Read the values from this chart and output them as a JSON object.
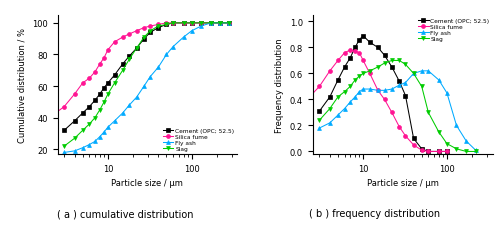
{
  "cum_x_cement": [
    3,
    4,
    5,
    6,
    7,
    8,
    9,
    10,
    12,
    15,
    18,
    22,
    27,
    32,
    40,
    50,
    60,
    80,
    100,
    130,
    170,
    220,
    280
  ],
  "cum_y_cement": [
    32,
    38,
    43,
    47,
    51,
    55,
    59,
    62,
    67,
    74,
    79,
    84,
    90,
    94,
    97,
    99,
    100,
    100,
    100,
    100,
    100,
    100,
    100
  ],
  "cum_x_silica": [
    2,
    3,
    4,
    5,
    6,
    7,
    8,
    9,
    10,
    12,
    15,
    18,
    22,
    27,
    32,
    40,
    50,
    60,
    80,
    100,
    130,
    170,
    220,
    280
  ],
  "cum_y_silica": [
    40,
    47,
    55,
    62,
    65,
    69,
    74,
    78,
    83,
    88,
    91,
    93,
    95,
    97,
    98,
    99,
    100,
    100,
    100,
    100,
    100,
    100,
    100,
    100
  ],
  "cum_x_flyash": [
    3,
    4,
    5,
    6,
    7,
    8,
    9,
    10,
    12,
    15,
    18,
    22,
    27,
    32,
    40,
    50,
    60,
    80,
    100,
    130,
    170,
    220,
    280
  ],
  "cum_y_flyash": [
    18,
    19,
    21,
    23,
    25,
    28,
    31,
    34,
    38,
    43,
    48,
    53,
    60,
    66,
    72,
    80,
    85,
    91,
    95,
    98,
    100,
    100,
    100
  ],
  "cum_x_slag": [
    3,
    4,
    5,
    6,
    7,
    8,
    9,
    10,
    12,
    15,
    18,
    22,
    27,
    32,
    40,
    50,
    60,
    80,
    100,
    130,
    170,
    220,
    280
  ],
  "cum_y_slag": [
    22,
    27,
    32,
    36,
    40,
    45,
    50,
    55,
    62,
    70,
    77,
    84,
    91,
    95,
    98,
    99,
    100,
    100,
    100,
    100,
    100,
    100,
    100
  ],
  "freq_x_cement": [
    3,
    4,
    5,
    6,
    7,
    8,
    9,
    10,
    12,
    15,
    18,
    22,
    27,
    32,
    40,
    50,
    60,
    80,
    100
  ],
  "freq_y_cement": [
    0.31,
    0.42,
    0.55,
    0.65,
    0.72,
    0.8,
    0.86,
    0.89,
    0.84,
    0.8,
    0.74,
    0.65,
    0.54,
    0.43,
    0.1,
    0.02,
    0.0,
    0.0,
    0.0
  ],
  "freq_x_silica": [
    2,
    3,
    4,
    5,
    6,
    7,
    8,
    9,
    10,
    12,
    15,
    18,
    22,
    27,
    32,
    40,
    50,
    60,
    80,
    100
  ],
  "freq_y_silica": [
    0.38,
    0.5,
    0.62,
    0.7,
    0.76,
    0.78,
    0.77,
    0.76,
    0.7,
    0.6,
    0.47,
    0.4,
    0.3,
    0.19,
    0.12,
    0.05,
    0.01,
    0.0,
    0.0,
    0.0
  ],
  "freq_x_flyash": [
    3,
    4,
    5,
    6,
    7,
    8,
    9,
    10,
    12,
    15,
    18,
    22,
    27,
    32,
    40,
    50,
    60,
    80,
    100,
    130,
    170,
    220
  ],
  "freq_y_flyash": [
    0.18,
    0.22,
    0.28,
    0.33,
    0.38,
    0.42,
    0.46,
    0.48,
    0.48,
    0.47,
    0.47,
    0.48,
    0.51,
    0.53,
    0.6,
    0.62,
    0.62,
    0.55,
    0.45,
    0.2,
    0.08,
    0.01
  ],
  "freq_x_slag": [
    3,
    4,
    5,
    6,
    7,
    8,
    9,
    10,
    12,
    15,
    18,
    22,
    27,
    32,
    40,
    50,
    60,
    80,
    100,
    130,
    170,
    220
  ],
  "freq_y_slag": [
    0.24,
    0.33,
    0.42,
    0.46,
    0.5,
    0.55,
    0.58,
    0.6,
    0.62,
    0.65,
    0.68,
    0.7,
    0.7,
    0.67,
    0.6,
    0.5,
    0.3,
    0.15,
    0.06,
    0.02,
    0.0,
    0.0
  ],
  "cement_color": "#000000",
  "silica_color": "#ff1493",
  "flyash_color": "#00aaff",
  "slag_color": "#00cc00",
  "cum_ylabel": "Cumulative distribution / %",
  "freq_ylabel": "Frequency distribution",
  "xlabel": "Particle size / μm",
  "cum_ylim": [
    17,
    105
  ],
  "freq_ylim": [
    -0.02,
    1.05
  ],
  "cum_yticks": [
    20,
    40,
    60,
    80,
    100
  ],
  "freq_yticks": [
    0.0,
    0.2,
    0.4,
    0.6,
    0.8,
    1.0
  ],
  "xlim": [
    2.5,
    350
  ],
  "caption_a": "( a ) cumulative distribution",
  "caption_b": "( b ) frequency distribution",
  "legend_labels": [
    "Cement (OPC; 52.5)",
    "Silica fume",
    "Fly ash",
    "Slag"
  ],
  "marker_cement": "s",
  "marker_silica": "o",
  "marker_flyash": "^",
  "marker_slag": "v"
}
